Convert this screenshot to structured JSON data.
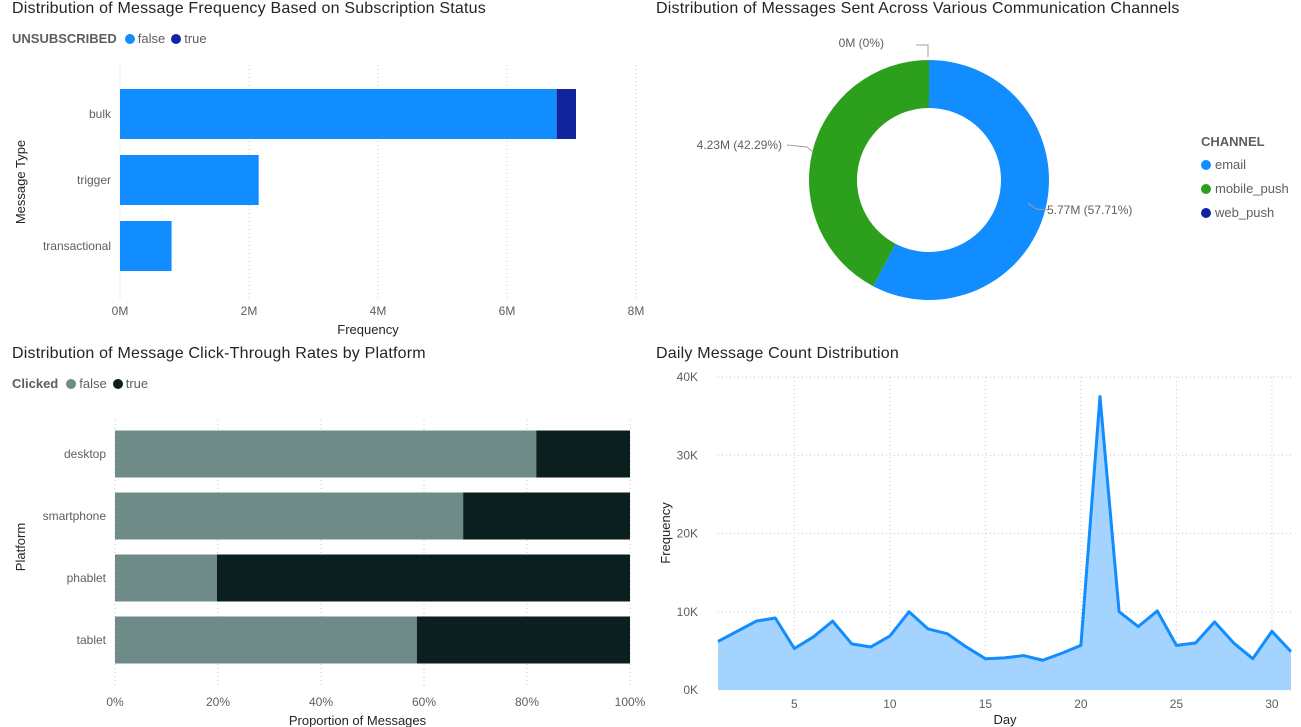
{
  "chart_data": [
    {
      "type": "bar",
      "orientation": "horizontal",
      "stacked": true,
      "title": "Distribution of Message Frequency Based on Subscription Status",
      "legend_title": "UNSUBSCRIBED",
      "categories": [
        "bulk",
        "trigger",
        "transactional"
      ],
      "series": [
        {
          "name": "false",
          "values": [
            6.77,
            2.15,
            0.8
          ],
          "color": "#118dff"
        },
        {
          "name": "true",
          "values": [
            0.3,
            0.0,
            0.0
          ],
          "color": "#12239e"
        }
      ],
      "xlabel": "Frequency",
      "ylabel": "Message Type",
      "xlim": [
        0,
        8
      ],
      "x_ticks": [
        "0M",
        "2M",
        "4M",
        "6M",
        "8M"
      ],
      "x_unit": "M",
      "grid": true
    },
    {
      "type": "pie",
      "donut": true,
      "title": "Distribution of Messages Sent Across Various Communication Channels",
      "legend_title": "CHANNEL",
      "legend_position": "right",
      "slices": [
        {
          "label": "email",
          "value": 5.77,
          "percent": 57.71,
          "data_label": "5.77M (57.71%)",
          "color": "#118dff"
        },
        {
          "label": "mobile_push",
          "value": 4.23,
          "percent": 42.29,
          "data_label": "4.23M (42.29%)",
          "color": "#2ca01c"
        },
        {
          "label": "web_push",
          "value": 0,
          "percent": 0,
          "data_label": "0M (0%)",
          "color": "#12239e"
        }
      ]
    },
    {
      "type": "bar",
      "orientation": "horizontal",
      "stacked": true,
      "percent": true,
      "title": "Distribution of Message Click-Through Rates by Platform",
      "legend_title": "Clicked",
      "categories": [
        "desktop",
        "smartphone",
        "phablet",
        "tablet"
      ],
      "series": [
        {
          "name": "false",
          "values": [
            81.8,
            67.6,
            19.8,
            58.6
          ],
          "color": "#6e8b88"
        },
        {
          "name": "true",
          "values": [
            18.2,
            32.4,
            80.2,
            41.4
          ],
          "color": "#0b201e"
        }
      ],
      "xlabel": "Proportion of Messages",
      "ylabel": "Platform",
      "xlim": [
        0,
        100
      ],
      "x_ticks": [
        "0%",
        "20%",
        "40%",
        "60%",
        "80%",
        "100%"
      ],
      "grid": true
    },
    {
      "type": "area",
      "title": "Daily Message Count Distribution",
      "x": [
        1,
        2,
        3,
        4,
        5,
        6,
        7,
        8,
        9,
        10,
        11,
        12,
        13,
        14,
        15,
        16,
        17,
        18,
        19,
        20,
        21,
        22,
        23,
        24,
        25,
        26,
        27,
        28,
        29,
        30,
        31
      ],
      "y": [
        6200,
        7500,
        8800,
        9200,
        5300,
        6800,
        8800,
        5900,
        5500,
        6900,
        10000,
        7800,
        7200,
        5500,
        4000,
        4100,
        4400,
        3800,
        4700,
        5700,
        37500,
        10000,
        8100,
        10100,
        5700,
        6000,
        8700,
        6000,
        4000,
        7500,
        4900
      ],
      "xlabel": "Day",
      "ylabel": "Frequency",
      "xlim": [
        1,
        31
      ],
      "ylim": [
        0,
        40000
      ],
      "x_ticks": [
        5,
        10,
        15,
        20,
        25,
        30
      ],
      "y_ticks": [
        "0K",
        "10K",
        "20K",
        "30K",
        "40K"
      ],
      "line_color": "#118dff",
      "fill_color": "#a0d1ff",
      "grid": true
    }
  ]
}
